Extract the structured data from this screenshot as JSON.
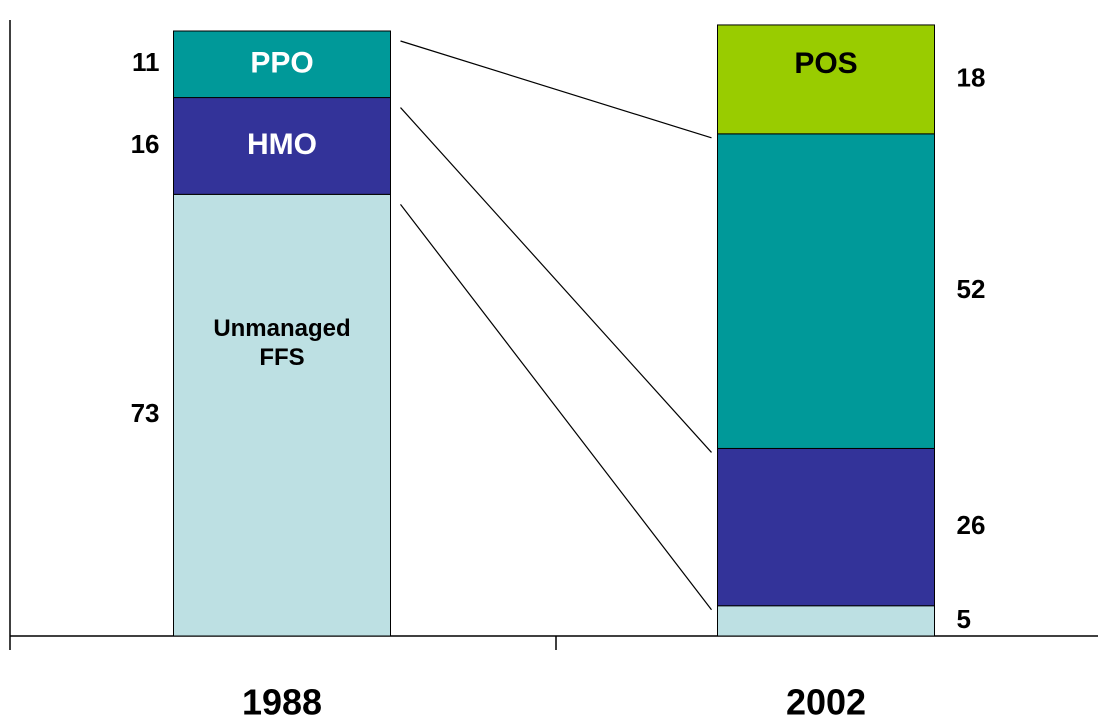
{
  "chart_data": {
    "type": "stacked-bar",
    "categories": [
      "1988",
      "2002"
    ],
    "series": [
      {
        "name": "Unmanaged FFS",
        "color": "#bde0e3",
        "values": [
          73,
          5
        ]
      },
      {
        "name": "HMO",
        "color": "#333399",
        "values": [
          16,
          26
        ]
      },
      {
        "name": "PPO",
        "color": "#009999",
        "values": [
          11,
          52
        ]
      },
      {
        "name": "POS",
        "color": "#99cc00",
        "values": [
          null,
          18
        ]
      }
    ],
    "ylim": [
      0,
      100
    ]
  }
}
